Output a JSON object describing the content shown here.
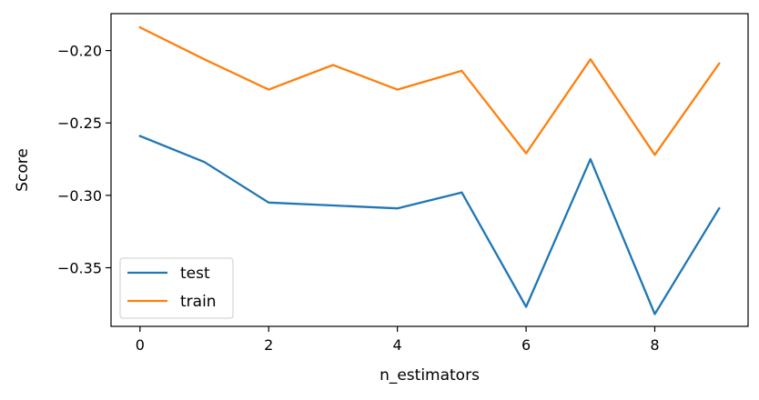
{
  "chart_data": {
    "type": "line",
    "xlabel": "n_estimators",
    "ylabel": "Score",
    "x": [
      0,
      1,
      2,
      3,
      4,
      5,
      6,
      7,
      8,
      9
    ],
    "xlim": [
      -0.45,
      9.45
    ],
    "ylim": [
      -0.3905,
      -0.1745
    ],
    "xticks": [
      0,
      2,
      4,
      6,
      8
    ],
    "xtick_labels": [
      "0",
      "2",
      "4",
      "6",
      "8"
    ],
    "yticks": [
      -0.35,
      -0.3,
      -0.25,
      -0.2
    ],
    "ytick_labels": [
      "−0.35",
      "−0.30",
      "−0.25",
      "−0.20"
    ],
    "grid": false,
    "legend_position": "lower-left",
    "series": [
      {
        "name": "test",
        "color": "#1f77b4",
        "values": [
          -0.259,
          -0.277,
          -0.305,
          -0.307,
          -0.309,
          -0.298,
          -0.377,
          -0.275,
          -0.382,
          -0.309
        ]
      },
      {
        "name": "train",
        "color": "#ff7f0e",
        "values": [
          -0.184,
          -0.206,
          -0.227,
          -0.21,
          -0.227,
          -0.214,
          -0.271,
          -0.206,
          -0.272,
          -0.209
        ]
      }
    ]
  }
}
